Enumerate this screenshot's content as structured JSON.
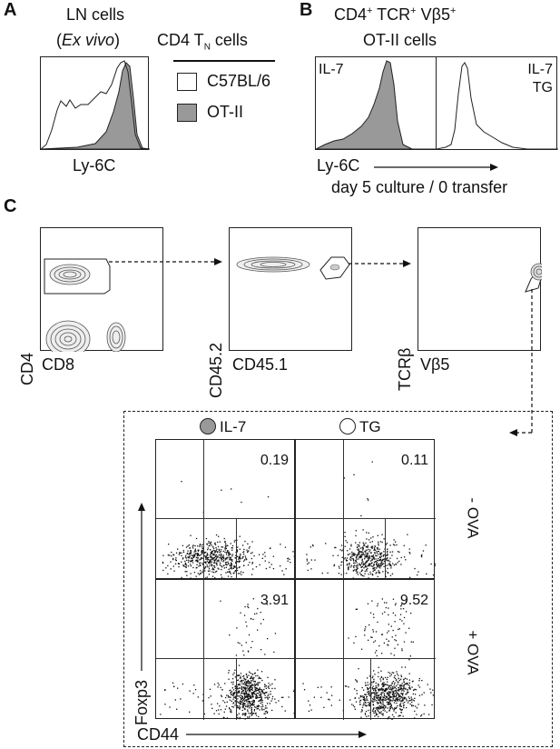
{
  "panel_a": {
    "letter": "A",
    "title_line1": "LN cells",
    "title_line2": "Ex vivo",
    "header": "CD4 T",
    "header_sub": "N",
    "header_tail": " cells",
    "legend": [
      {
        "label": "C57BL/6",
        "fill": "#ffffff"
      },
      {
        "label": "OT-II",
        "fill": "#999999"
      }
    ],
    "x_axis": "Ly-6C"
  },
  "panel_b": {
    "letter": "B",
    "title_cd4": "CD4",
    "title_tcr": "TCR",
    "title_vb": "Vβ5",
    "plus": "+",
    "title_line2": "OT-II cells",
    "hist_left_label": "IL-7",
    "hist_right_label_1": "IL-7",
    "hist_right_label_2": "TG",
    "x_axis": "Ly-6C",
    "subtitle": "day 5 culture / 0 transfer"
  },
  "panel_c": {
    "letter": "C",
    "plot1": {
      "y": "CD4",
      "x": "CD8"
    },
    "plot2": {
      "y": "CD45.2",
      "x": "CD45.1"
    },
    "plot3": {
      "y": "TCRβ",
      "x": "Vβ5"
    },
    "legend": [
      {
        "label": "IL-7",
        "fill": "#999999"
      },
      {
        "label": "TG",
        "fill": "#ffffff"
      }
    ],
    "quadrants": [
      {
        "value": "0.19"
      },
      {
        "value": "0.11"
      },
      {
        "value": "3.91"
      },
      {
        "value": "9.52"
      }
    ],
    "row_labels": [
      "- OVA",
      "+ OVA"
    ],
    "y_axis": "Foxp3",
    "x_axis": "CD44"
  }
}
